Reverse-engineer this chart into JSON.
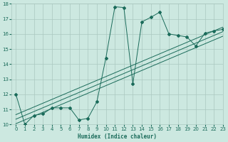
{
  "xlabel": "Humidex (Indice chaleur)",
  "bg_color": "#cce8e0",
  "grid_color": "#aac8c0",
  "line_color": "#1a6b5a",
  "xlim": [
    -0.5,
    23
  ],
  "ylim": [
    10,
    18
  ],
  "xticks": [
    0,
    1,
    2,
    3,
    4,
    5,
    6,
    7,
    8,
    9,
    10,
    11,
    12,
    13,
    14,
    15,
    16,
    17,
    18,
    19,
    20,
    21,
    22,
    23
  ],
  "yticks": [
    10,
    11,
    12,
    13,
    14,
    15,
    16,
    17,
    18
  ],
  "main_x": [
    0,
    1,
    2,
    3,
    4,
    5,
    6,
    7,
    8,
    9,
    10,
    11,
    12,
    13,
    14,
    15,
    16,
    17,
    18,
    19,
    20,
    21,
    22,
    23
  ],
  "main_y": [
    12.0,
    10.0,
    10.6,
    10.7,
    11.1,
    11.1,
    11.1,
    10.3,
    10.4,
    11.5,
    14.4,
    17.8,
    17.75,
    12.7,
    16.8,
    17.1,
    17.45,
    16.0,
    15.9,
    15.8,
    15.2,
    16.05,
    16.2,
    16.3
  ],
  "reg_lines": [
    {
      "x": [
        0,
        23
      ],
      "y": [
        10.05,
        15.85
      ]
    },
    {
      "x": [
        0,
        23
      ],
      "y": [
        10.35,
        16.15
      ]
    },
    {
      "x": [
        0,
        23
      ],
      "y": [
        10.65,
        16.45
      ]
    }
  ]
}
